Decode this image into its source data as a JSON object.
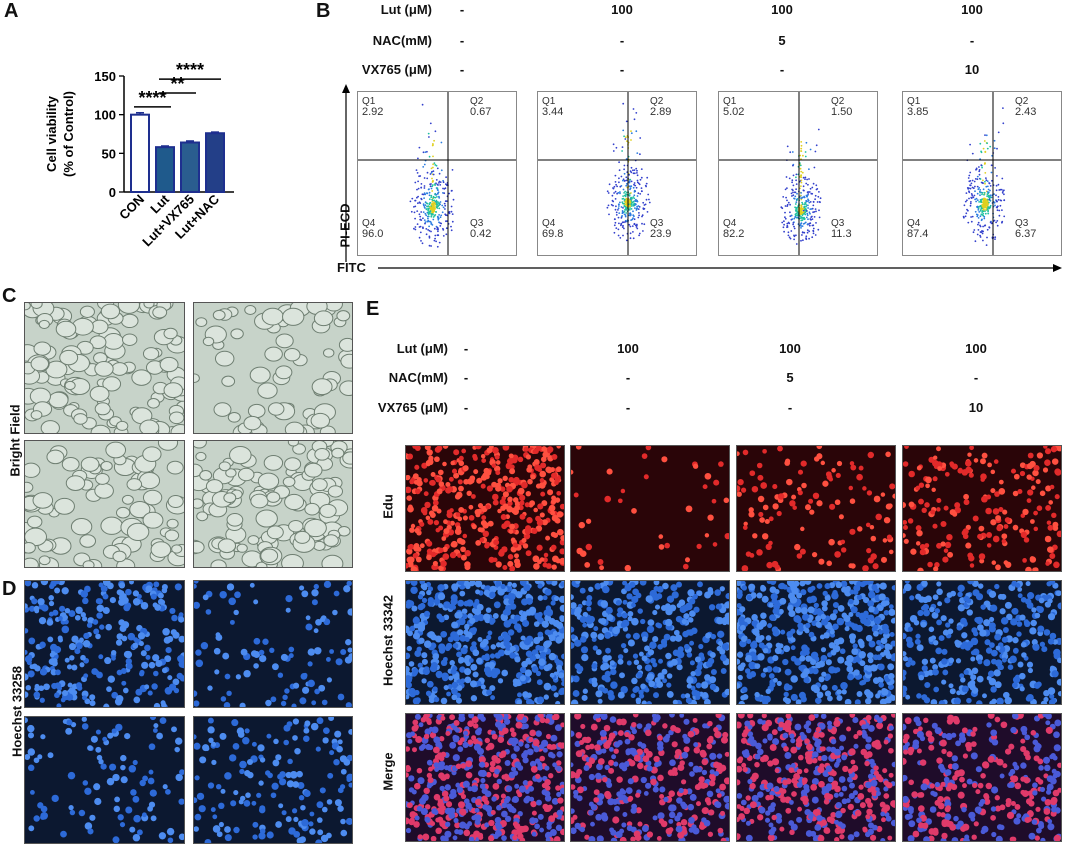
{
  "panels": {
    "A": "A",
    "B": "B",
    "C": "C",
    "D": "D",
    "E": "E"
  },
  "chart_data": {
    "type": "bar",
    "categories": [
      "CON",
      "Lut",
      "Lut+VX765",
      "Lut+NAC"
    ],
    "values": [
      100,
      58,
      64,
      76
    ],
    "errors": [
      2.5,
      1.5,
      2.0,
      1.5
    ],
    "ylabel": "Cell viability\n(% of Control)",
    "ylabel_lines": [
      "Cell viability",
      "(% of Control)"
    ],
    "ylim": [
      0,
      150
    ],
    "yticks": [
      "0",
      "50",
      "100",
      "150"
    ],
    "significance": [
      "****",
      "**",
      "****"
    ],
    "colors": {
      "con_fill": "#ffffff",
      "con_edge": "#1e2f8f",
      "lut": "#1f5a8c",
      "vx": "#2a5d8f",
      "nac": "#233f88"
    }
  },
  "conditions": {
    "labels": [
      "Lut (μM)",
      "NAC(mM)",
      "VX765 (μM)"
    ],
    "rows": [
      [
        "-",
        "100",
        "100",
        "100"
      ],
      [
        "-",
        "-",
        "5",
        "-"
      ],
      [
        "-",
        "-",
        "-",
        "10"
      ]
    ]
  },
  "flow": {
    "y_axis": "PI-ECD",
    "x_axis": "FITC",
    "plots": [
      {
        "q1": "Q1",
        "q1v": "2.92",
        "q2": "Q2",
        "q2v": "0.67",
        "q3": "Q3",
        "q3v": "0.42",
        "q4": "Q4",
        "q4v": "96.0"
      },
      {
        "q1": "Q1",
        "q1v": "3.44",
        "q2": "Q2",
        "q2v": "2.89",
        "q3": "Q3",
        "q3v": "23.9",
        "q4": "Q4",
        "q4v": "69.8"
      },
      {
        "q1": "Q1",
        "q1v": "5.02",
        "q2": "Q2",
        "q2v": "1.50",
        "q3": "Q3",
        "q3v": "11.3",
        "q4": "Q4",
        "q4v": "82.2"
      },
      {
        "q1": "Q1",
        "q1v": "3.85",
        "q2": "Q2",
        "q2v": "2.43",
        "q3": "Q3",
        "q3v": "6.37",
        "q4": "Q4",
        "q4v": "87.4"
      }
    ]
  },
  "row_labels": {
    "bright_field": "Bright Field",
    "hoechst_33258": "Hoechst 33258",
    "edu": "Edu",
    "hoechst_33342": "Hoechst 33342",
    "merge": "Merge"
  }
}
